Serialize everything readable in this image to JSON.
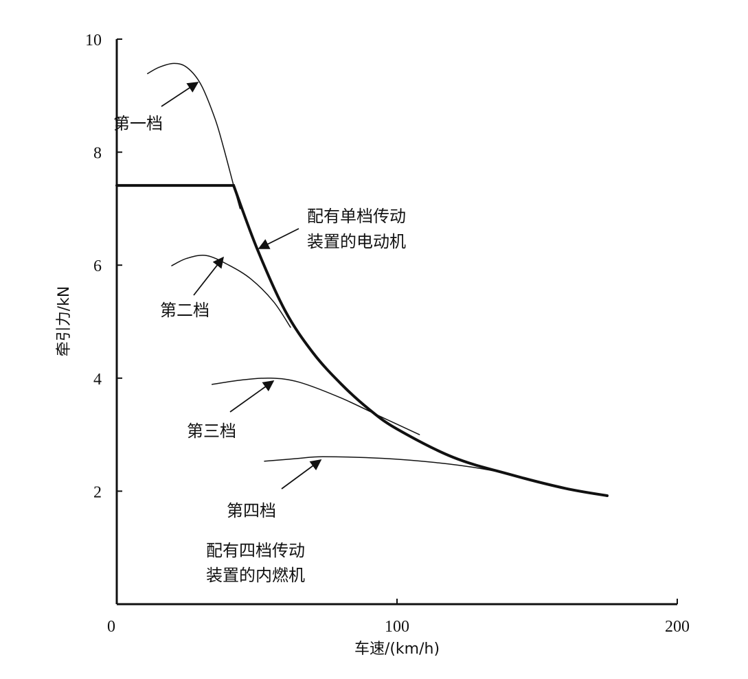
{
  "chart_data": {
    "type": "line",
    "title": "",
    "xlabel": "车速/(km/h)",
    "ylabel": "牵引力/kN",
    "xlim": [
      0,
      200
    ],
    "ylim": [
      0,
      10
    ],
    "xticks": [
      0,
      100,
      200
    ],
    "yticks": [
      2,
      4,
      6,
      8,
      10
    ],
    "grid": false,
    "series": [
      {
        "name": "配有单档传动装置的电动机",
        "style": "thick",
        "x": [
          0,
          41.7,
          50,
          60,
          70,
          80,
          90,
          100,
          120,
          140,
          160,
          175
        ],
        "y": [
          7.41,
          7.41,
          6.3,
          5.2,
          4.45,
          3.9,
          3.45,
          3.1,
          2.6,
          2.3,
          2.05,
          1.92
        ]
      },
      {
        "name": "第一档",
        "style": "thin",
        "x": [
          11,
          15,
          20.3,
          25,
          30,
          35,
          38,
          41.7,
          44
        ],
        "y": [
          9.39,
          9.5,
          9.57,
          9.5,
          9.2,
          8.6,
          8.1,
          7.41,
          7.0
        ]
      },
      {
        "name": "第二档",
        "style": "thin",
        "x": [
          19.6,
          25,
          32,
          40,
          48,
          56,
          62
        ],
        "y": [
          5.99,
          6.12,
          6.17,
          6.0,
          5.75,
          5.35,
          4.9
        ]
      },
      {
        "name": "第三档",
        "style": "thin",
        "x": [
          34,
          45,
          55,
          65,
          80,
          95,
          108
        ],
        "y": [
          3.89,
          3.97,
          4.0,
          3.93,
          3.65,
          3.3,
          3.0
        ]
      },
      {
        "name": "第四档",
        "style": "thin",
        "x": [
          52.7,
          65,
          73.5,
          95,
          115,
          130,
          142
        ],
        "y": [
          2.53,
          2.58,
          2.61,
          2.58,
          2.5,
          2.4,
          2.28
        ]
      }
    ],
    "annotations": [
      {
        "text": "第一档"
      },
      {
        "text": "第二档"
      },
      {
        "text": "第三档"
      },
      {
        "text": "第四档"
      },
      {
        "text_lines": [
          "配有单档传动",
          "装置的电动机"
        ]
      },
      {
        "text_lines": [
          "配有四档传动",
          "装置的内燃机"
        ]
      }
    ],
    "legend": "none",
    "colors": {
      "line": "#111111",
      "background": "#ffffff"
    }
  }
}
